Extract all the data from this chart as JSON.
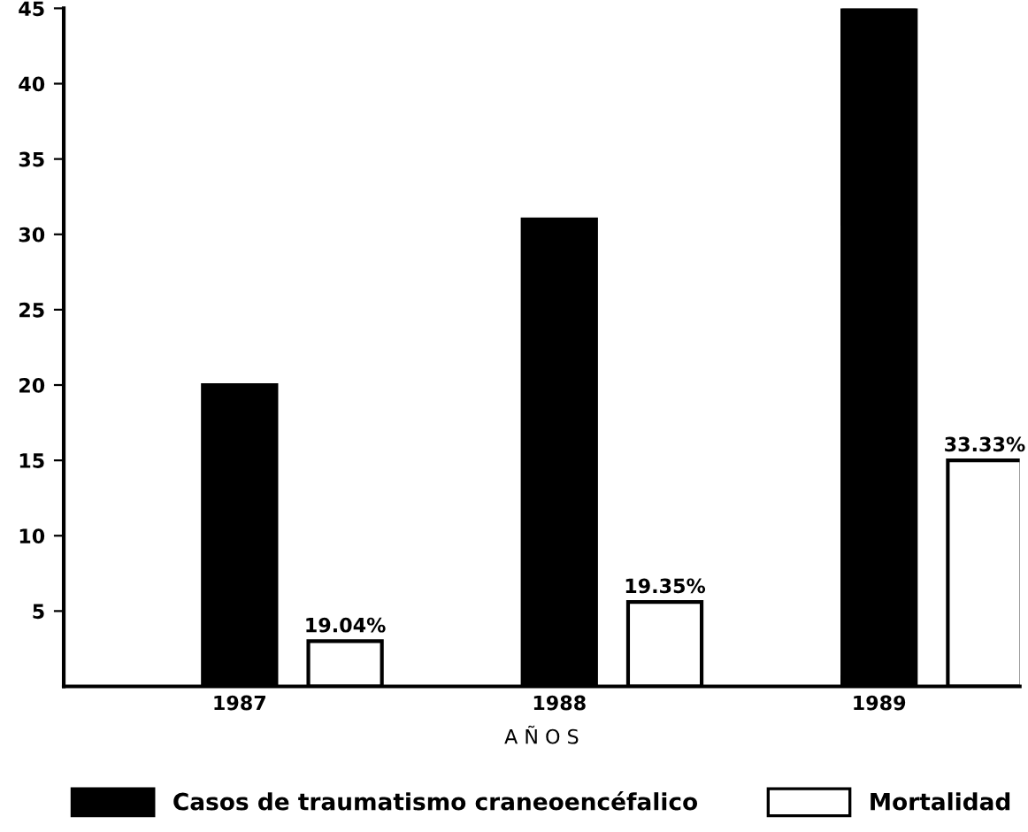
{
  "chart_data": {
    "type": "bar",
    "xlabel": "A Ñ O S",
    "categories": [
      "1987",
      "1988",
      "1989"
    ],
    "series": [
      {
        "name": "Casos de traumatismo craneoencéfalico",
        "color": "#000000",
        "values": [
          20,
          31,
          45
        ]
      },
      {
        "name": "Mortalidad",
        "color": "#ffffff",
        "values": [
          3,
          5.6,
          15
        ]
      }
    ],
    "annotations": [
      "19.04%",
      "19.35%",
      "33.33%"
    ],
    "ylim": [
      0,
      45
    ],
    "yticks": [
      5,
      10,
      15,
      20,
      25,
      30,
      35,
      40,
      45
    ],
    "grid": false,
    "legend": "bottom"
  }
}
